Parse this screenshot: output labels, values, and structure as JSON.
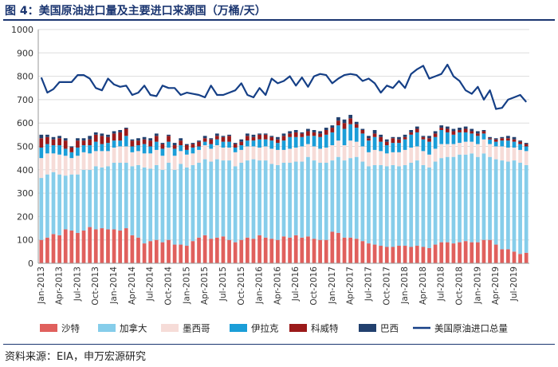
{
  "figure": {
    "title": "图 4：美国原油进口量及主要进口来源国（万桶/天）",
    "source": "资料来源：EIA，申万宏源研究"
  },
  "colors": {
    "沙特": "#e0605d",
    "加拿大": "#86cdea",
    "墨西哥": "#f6dcd8",
    "伊拉克": "#1b9ed8",
    "科威特": "#9b1a1a",
    "巴西": "#22406e",
    "美国原油进口总量": "#153f86",
    "title": "#1a3570",
    "grid": "#dddddd"
  },
  "chart_data": {
    "type": "bar",
    "stacked": true,
    "title": "",
    "xlabel": "",
    "ylabel": "",
    "ylim": [
      0,
      1000
    ],
    "yticks": [
      0,
      100,
      200,
      300,
      400,
      500,
      600,
      700,
      800,
      900,
      1000
    ],
    "grid": true,
    "legend_position": "bottom",
    "x_tick_labels": [
      "Jan-2013",
      "Apr-2013",
      "Jul-2013",
      "Oct-2013",
      "Jan-2014",
      "Apr-2014",
      "Jul-2014",
      "Oct-2014",
      "Jan-2015",
      "Apr-2015",
      "Jul-2015",
      "Oct-2015",
      "Jan-2016",
      "Apr-2016",
      "Jul-2016",
      "Oct-2016",
      "Jan-2017",
      "Apr-2017",
      "Jul-2017",
      "Oct-2017",
      "Jan-2018",
      "Apr-2018",
      "Jul-2018",
      "Oct-2018",
      "Jan-2019",
      "Apr-2019",
      "Jul-2019"
    ],
    "legend": [
      "沙特",
      "加拿大",
      "墨西哥",
      "伊拉克",
      "科威特",
      "巴西",
      "美国原油进口总量"
    ],
    "categories": [
      "2013-01",
      "2013-02",
      "2013-03",
      "2013-04",
      "2013-05",
      "2013-06",
      "2013-07",
      "2013-08",
      "2013-09",
      "2013-10",
      "2013-11",
      "2013-12",
      "2014-01",
      "2014-02",
      "2014-03",
      "2014-04",
      "2014-05",
      "2014-06",
      "2014-07",
      "2014-08",
      "2014-09",
      "2014-10",
      "2014-11",
      "2014-12",
      "2015-01",
      "2015-02",
      "2015-03",
      "2015-04",
      "2015-05",
      "2015-06",
      "2015-07",
      "2015-08",
      "2015-09",
      "2015-10",
      "2015-11",
      "2015-12",
      "2016-01",
      "2016-02",
      "2016-03",
      "2016-04",
      "2016-05",
      "2016-06",
      "2016-07",
      "2016-08",
      "2016-09",
      "2016-10",
      "2016-11",
      "2016-12",
      "2017-01",
      "2017-02",
      "2017-03",
      "2017-04",
      "2017-05",
      "2017-06",
      "2017-07",
      "2017-08",
      "2017-09",
      "2017-10",
      "2017-11",
      "2017-12",
      "2018-01",
      "2018-02",
      "2018-03",
      "2018-04",
      "2018-05",
      "2018-06",
      "2018-07",
      "2018-08",
      "2018-09",
      "2018-10",
      "2018-11",
      "2018-12",
      "2019-01",
      "2019-02",
      "2019-03",
      "2019-04",
      "2019-05",
      "2019-06",
      "2019-07",
      "2019-08",
      "2019-09"
    ],
    "series": [
      {
        "name": "沙特",
        "type": "bar",
        "values": [
          100,
          110,
          125,
          120,
          145,
          140,
          130,
          140,
          155,
          145,
          150,
          145,
          145,
          140,
          150,
          120,
          110,
          85,
          95,
          100,
          90,
          100,
          80,
          80,
          75,
          95,
          110,
          120,
          105,
          110,
          115,
          100,
          90,
          100,
          110,
          105,
          120,
          110,
          105,
          100,
          115,
          110,
          120,
          110,
          115,
          105,
          100,
          100,
          135,
          130,
          110,
          110,
          105,
          95,
          85,
          80,
          75,
          70,
          70,
          75,
          75,
          70,
          75,
          70,
          65,
          80,
          90,
          90,
          85,
          90,
          95,
          90,
          90,
          100,
          100,
          80,
          60,
          60,
          50,
          40,
          45
        ]
      },
      {
        "name": "加拿大",
        "type": "bar",
        "values": [
          265,
          270,
          265,
          260,
          230,
          240,
          250,
          260,
          245,
          270,
          260,
          270,
          285,
          290,
          280,
          295,
          310,
          325,
          310,
          320,
          310,
          330,
          320,
          345,
          335,
          325,
          320,
          325,
          330,
          335,
          325,
          340,
          325,
          330,
          330,
          340,
          320,
          330,
          320,
          320,
          315,
          320,
          315,
          325,
          340,
          335,
          330,
          330,
          305,
          325,
          330,
          340,
          350,
          340,
          330,
          340,
          345,
          345,
          350,
          340,
          345,
          360,
          365,
          350,
          345,
          355,
          360,
          365,
          370,
          375,
          370,
          380,
          365,
          370,
          355,
          365,
          380,
          375,
          390,
          390,
          375
        ]
      },
      {
        "name": "墨西哥",
        "type": "bar",
        "values": [
          85,
          90,
          80,
          85,
          85,
          70,
          80,
          75,
          70,
          65,
          70,
          65,
          65,
          70,
          70,
          60,
          60,
          60,
          65,
          65,
          60,
          65,
          60,
          55,
          55,
          50,
          55,
          60,
          55,
          60,
          55,
          55,
          60,
          55,
          60,
          55,
          55,
          60,
          65,
          65,
          55,
          60,
          60,
          65,
          55,
          60,
          60,
          65,
          65,
          70,
          65,
          75,
          65,
          65,
          60,
          65,
          60,
          55,
          55,
          60,
          65,
          65,
          60,
          60,
          55,
          55,
          60,
          55,
          55,
          50,
          55,
          50,
          55,
          60,
          55,
          55,
          60,
          60,
          55,
          55,
          60
        ]
      },
      {
        "name": "伊拉克",
        "type": "bar",
        "values": [
          45,
          40,
          35,
          40,
          30,
          25,
          35,
          30,
          35,
          40,
          30,
          35,
          30,
          25,
          45,
          25,
          25,
          40,
          30,
          35,
          30,
          25,
          30,
          25,
          20,
          25,
          15,
          15,
          20,
          25,
          25,
          25,
          20,
          20,
          25,
          25,
          35,
          30,
          35,
          30,
          40,
          50,
          45,
          40,
          35,
          45,
          50,
          55,
          55,
          65,
          70,
          70,
          60,
          55,
          50,
          55,
          40,
          35,
          40,
          40,
          45,
          55,
          60,
          50,
          55,
          50,
          60,
          50,
          40,
          45,
          40,
          35,
          35,
          25,
          20,
          20,
          25,
          30,
          25,
          25,
          20
        ]
      },
      {
        "name": "科威特",
        "type": "bar",
        "values": [
          40,
          30,
          25,
          30,
          35,
          20,
          30,
          20,
          25,
          30,
          35,
          25,
          30,
          35,
          30,
          25,
          20,
          20,
          25,
          25,
          20,
          25,
          15,
          20,
          20,
          15,
          20,
          15,
          20,
          15,
          20,
          25,
          15,
          15,
          20,
          15,
          20,
          20,
          15,
          15,
          20,
          15,
          20,
          15,
          20,
          15,
          15,
          20,
          20,
          20,
          25,
          25,
          15,
          15,
          10,
          15,
          20,
          15,
          20,
          15,
          10,
          10,
          15,
          10,
          15,
          15,
          10,
          15,
          15,
          10,
          15,
          10,
          10,
          10,
          5,
          10,
          10,
          10,
          10,
          10,
          10
        ]
      },
      {
        "name": "巴西",
        "type": "bar",
        "values": [
          15,
          10,
          10,
          10,
          10,
          5,
          10,
          10,
          15,
          10,
          10,
          10,
          10,
          10,
          5,
          5,
          10,
          10,
          10,
          10,
          5,
          5,
          10,
          10,
          5,
          5,
          5,
          10,
          5,
          10,
          5,
          5,
          5,
          10,
          10,
          10,
          5,
          5,
          5,
          10,
          10,
          10,
          10,
          5,
          10,
          10,
          10,
          10,
          10,
          15,
          15,
          15,
          10,
          5,
          10,
          15,
          10,
          10,
          5,
          10,
          10,
          10,
          10,
          5,
          10,
          10,
          10,
          10,
          10,
          10,
          10,
          10,
          10,
          5,
          5,
          5,
          5,
          10,
          10,
          5,
          5
        ]
      },
      {
        "name": "美国原油进口总量",
        "type": "line",
        "values": [
          795,
          730,
          745,
          775,
          775,
          775,
          805,
          805,
          790,
          750,
          740,
          790,
          765,
          755,
          760,
          720,
          730,
          760,
          720,
          715,
          760,
          750,
          750,
          720,
          730,
          725,
          720,
          710,
          760,
          720,
          720,
          730,
          740,
          770,
          720,
          710,
          750,
          720,
          790,
          770,
          780,
          800,
          760,
          795,
          755,
          800,
          810,
          805,
          770,
          790,
          805,
          810,
          805,
          780,
          790,
          770,
          730,
          760,
          750,
          780,
          750,
          810,
          830,
          845,
          790,
          800,
          810,
          850,
          800,
          780,
          740,
          725,
          755,
          700,
          740,
          660,
          665,
          700,
          710,
          720,
          690
        ]
      }
    ]
  }
}
